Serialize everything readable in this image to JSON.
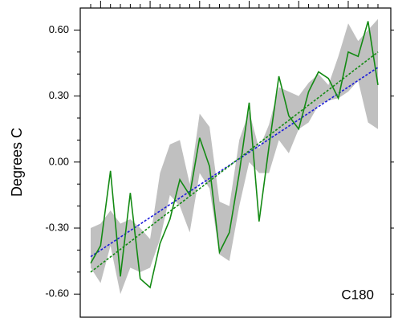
{
  "chart_data": {
    "type": "line",
    "ylabel": "Degrees C",
    "annotation": "C180",
    "categories": [
      null,
      null,
      null,
      null,
      null,
      null,
      null,
      null,
      null,
      null,
      null,
      null,
      null,
      null,
      null,
      null,
      null,
      null,
      null,
      null,
      null,
      null,
      null,
      null,
      null,
      null,
      null,
      null,
      null,
      null
    ],
    "series": [
      {
        "color": "#138a13",
        "values": [
          -0.46,
          -0.38,
          -0.04,
          -0.52,
          -0.14,
          -0.53,
          -0.57,
          -0.37,
          -0.26,
          -0.08,
          -0.15,
          0.11,
          -0.02,
          -0.41,
          -0.32,
          -0.05,
          0.27,
          -0.27,
          0.07,
          0.39,
          0.21,
          0.15,
          0.32,
          0.41,
          0.38,
          0.29,
          0.5,
          0.48,
          0.64,
          0.35
        ]
      }
    ],
    "band": {
      "color": "#c0c0c0",
      "upper": [
        -0.3,
        -0.28,
        -0.22,
        -0.28,
        -0.26,
        -0.3,
        -0.35,
        -0.05,
        0.08,
        0.1,
        -0.1,
        0.22,
        0.16,
        -0.18,
        -0.2,
        0.1,
        0.23,
        0.06,
        0.17,
        0.34,
        0.32,
        0.3,
        0.36,
        0.4,
        0.35,
        0.48,
        0.63,
        0.55,
        0.6,
        0.65
      ],
      "lower": [
        -0.48,
        -0.55,
        -0.38,
        -0.6,
        -0.48,
        -0.5,
        -0.48,
        -0.35,
        -0.15,
        -0.2,
        -0.32,
        -0.05,
        -0.12,
        -0.42,
        -0.45,
        -0.2,
        0.0,
        -0.05,
        -0.05,
        0.1,
        0.04,
        0.15,
        0.18,
        0.26,
        0.28,
        0.29,
        0.32,
        0.37,
        0.18,
        0.15
      ]
    },
    "trend_lines": [
      {
        "color": "#1a1adb",
        "values": [
          -0.43,
          0.43
        ]
      },
      {
        "color": "#138a13",
        "values": [
          -0.5,
          0.5
        ]
      }
    ],
    "ylim": [
      -0.705,
      0.7
    ],
    "yticks": [
      {
        "value": -0.6,
        "label": "-0.60"
      },
      {
        "value": -0.3,
        "label": "-0.30"
      },
      {
        "value": 0,
        "label": "0.00"
      },
      {
        "value": 0.3,
        "label": "0.30"
      },
      {
        "value": 0.6,
        "label": "0.60"
      }
    ]
  }
}
